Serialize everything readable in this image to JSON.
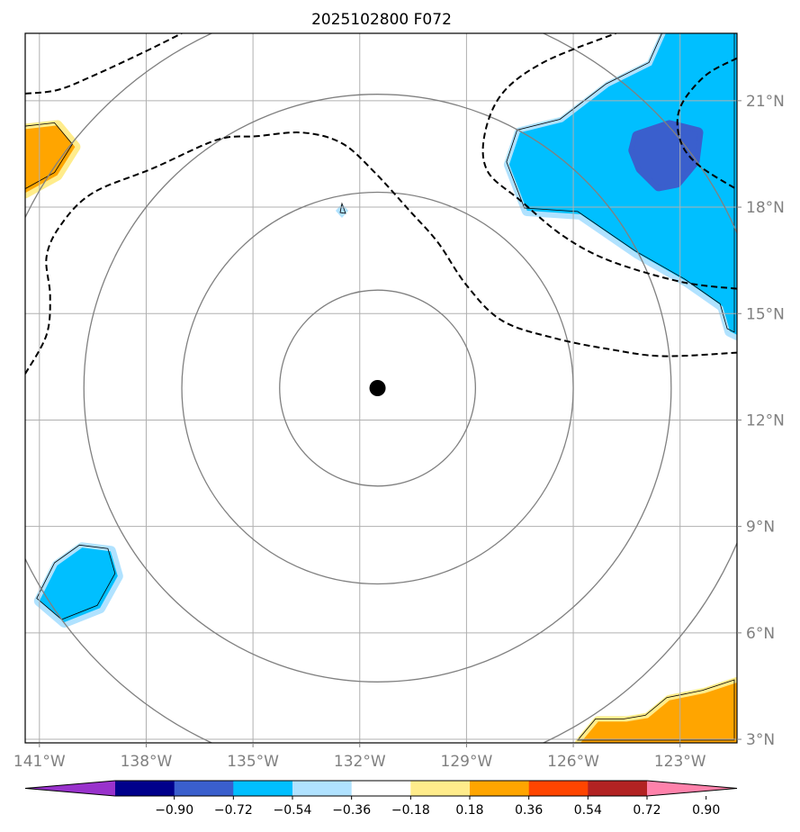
{
  "chart_data": {
    "type": "heatmap",
    "title": "2025102800 F072",
    "x_ticks": [
      "141°W",
      "138°W",
      "135°W",
      "132°W",
      "129°W",
      "126°W",
      "123°W"
    ],
    "x_values": [
      -141,
      -138,
      -135,
      -132,
      -129,
      -126,
      -123
    ],
    "y_ticks": [
      "21°N",
      "18°N",
      "15°N",
      "12°N",
      "9°N",
      "6°N",
      "3°N"
    ],
    "y_values": [
      21,
      18,
      15,
      12,
      9,
      6,
      3
    ],
    "xlim": [
      -141.4,
      -121.4
    ],
    "ylim": [
      2.9,
      22.9
    ],
    "center": {
      "lon": -131.5,
      "lat": 12.9
    },
    "range_rings_deg": [
      2.75,
      5.5,
      8.25,
      11.0
    ],
    "colorbar": {
      "levels": [
        "−0.90",
        "−0.72",
        "−0.54",
        "−0.36",
        "−0.18",
        "0.18",
        "0.36",
        "0.54",
        "0.72",
        "0.90"
      ],
      "colors": [
        "#9932cc",
        "#00008b",
        "#3a5fcd",
        "#00bfff",
        "#b0e2ff",
        "#ffffff",
        "#ffec8b",
        "#ffa500",
        "#ff4500",
        "#b22222",
        "#ff82ab"
      ]
    },
    "shaded_regions": [
      {
        "name": "positive anomaly (west edge near 19°N)",
        "level": "0.36–0.54",
        "color": "#ffa500",
        "outline": [
          [
            -141.4,
            20.2
          ],
          [
            -140.5,
            20.3
          ],
          [
            -140.0,
            19.7
          ],
          [
            -140.5,
            18.9
          ],
          [
            -141.4,
            18.4
          ]
        ]
      },
      {
        "name": "negative anomaly (west edge near 7°N)",
        "level": "−0.54–−0.36",
        "color": "#00bfff",
        "outline": [
          [
            -141.0,
            6.9
          ],
          [
            -140.5,
            7.9
          ],
          [
            -139.8,
            8.4
          ],
          [
            -139.0,
            8.3
          ],
          [
            -138.8,
            7.6
          ],
          [
            -139.3,
            6.7
          ],
          [
            -140.3,
            6.3
          ]
        ]
      },
      {
        "name": "negative anomaly (northeast)",
        "level": "−0.54–−0.36",
        "color": "#00bfff",
        "outline": [
          [
            -121.4,
            22.9
          ],
          [
            -123.4,
            22.9
          ],
          [
            -123.8,
            22.0
          ],
          [
            -125.0,
            21.4
          ],
          [
            -126.3,
            20.4
          ],
          [
            -127.5,
            20.1
          ],
          [
            -127.8,
            19.2
          ],
          [
            -127.3,
            17.9
          ],
          [
            -125.8,
            17.8
          ],
          [
            -124.2,
            16.7
          ],
          [
            -122.8,
            15.9
          ],
          [
            -121.8,
            15.2
          ],
          [
            -121.6,
            14.5
          ],
          [
            -121.4,
            14.4
          ]
        ]
      },
      {
        "name": "strong negative core",
        "level": "−0.72–−0.54",
        "color": "#3a5fcd",
        "outline": [
          [
            -124.2,
            20.0
          ],
          [
            -123.3,
            20.3
          ],
          [
            -122.5,
            20.1
          ],
          [
            -122.6,
            19.3
          ],
          [
            -123.1,
            18.7
          ],
          [
            -123.6,
            18.6
          ],
          [
            -124.1,
            19.1
          ],
          [
            -124.3,
            19.6
          ]
        ]
      },
      {
        "name": "positive anomaly (southeast)",
        "level": "0.36–0.54",
        "color": "#ffa500",
        "outline": [
          [
            -125.8,
            2.9
          ],
          [
            -125.3,
            3.5
          ],
          [
            -124.5,
            3.5
          ],
          [
            -123.9,
            3.6
          ],
          [
            -123.3,
            4.1
          ],
          [
            -122.3,
            4.3
          ],
          [
            -121.4,
            4.6
          ],
          [
            -121.4,
            2.9
          ]
        ]
      }
    ],
    "dashed_contours": [
      {
        "name": "dashed contour north-west",
        "points": [
          [
            -141.4,
            21.2
          ],
          [
            -140.5,
            21.3
          ],
          [
            -139.5,
            21.7
          ],
          [
            -138.0,
            22.4
          ],
          [
            -137.0,
            22.9
          ]
        ]
      },
      {
        "name": "dashed contour main",
        "points": [
          [
            -141.4,
            13.3
          ],
          [
            -140.8,
            14.4
          ],
          [
            -140.7,
            15.5
          ],
          [
            -140.8,
            16.6
          ],
          [
            -140.4,
            17.5
          ],
          [
            -139.5,
            18.4
          ],
          [
            -137.8,
            19.1
          ],
          [
            -136.0,
            19.9
          ],
          [
            -134.9,
            20.0
          ],
          [
            -133.6,
            20.1
          ],
          [
            -132.5,
            19.8
          ],
          [
            -131.6,
            19.0
          ],
          [
            -130.6,
            17.9
          ],
          [
            -129.8,
            17.0
          ],
          [
            -129.0,
            15.8
          ],
          [
            -128.0,
            14.8
          ],
          [
            -126.5,
            14.3
          ],
          [
            -125.0,
            14.0
          ],
          [
            -123.5,
            13.8
          ],
          [
            -121.4,
            13.9
          ]
        ]
      },
      {
        "name": "dashed contour northeast loop",
        "points": [
          [
            -121.4,
            15.7
          ],
          [
            -123.0,
            15.9
          ],
          [
            -125.0,
            16.5
          ],
          [
            -126.3,
            17.2
          ],
          [
            -127.5,
            18.2
          ],
          [
            -128.4,
            19.0
          ],
          [
            -128.5,
            20.0
          ],
          [
            -128.0,
            21.2
          ],
          [
            -126.8,
            22.1
          ],
          [
            -124.8,
            22.9
          ]
        ]
      },
      {
        "name": "dashed contour east",
        "points": [
          [
            -121.4,
            22.2
          ],
          [
            -122.3,
            21.7
          ],
          [
            -123.0,
            20.8
          ],
          [
            -123.0,
            19.9
          ],
          [
            -122.5,
            19.2
          ],
          [
            -121.4,
            18.5
          ]
        ]
      }
    ],
    "marker": {
      "name": "storm center",
      "lon": -131.5,
      "lat": 12.9
    },
    "small_feature": {
      "name": "small negative cell",
      "lon": -132.5,
      "lat": 17.9
    }
  }
}
